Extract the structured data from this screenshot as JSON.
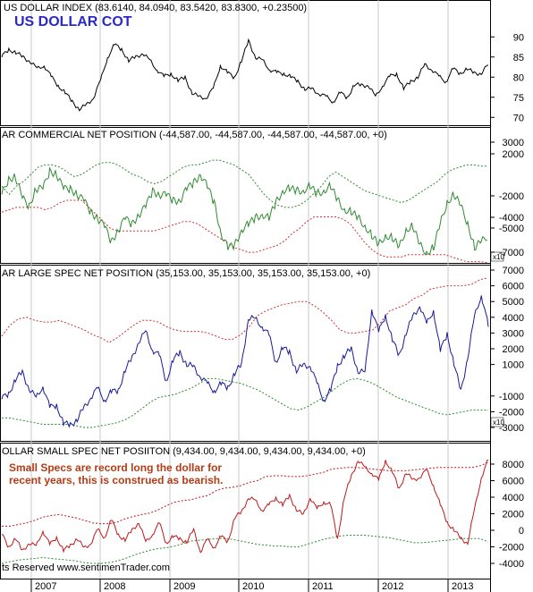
{
  "header": {
    "title_text": "US DOLLAR INDEX (83.6140, 84.0940, 83.5420, 83.8300, +0.23500)",
    "big_title": "US DOLLAR COT"
  },
  "annotation": {
    "line1": "Small Specs are record long the dollar for",
    "line2": "recent years, this is construed as bearish."
  },
  "footer": {
    "copyright": "ts Reserved  www.sentimenTrader.com"
  },
  "chart_data": [
    {
      "type": "line",
      "title": "US DOLLAR INDEX (83.6140, 84.0940, 83.5420, 83.8300, +0.23500)",
      "y_ticks": [
        90,
        85,
        80,
        75,
        70
      ],
      "ylim": [
        68.5,
        92.5
      ],
      "color": "#000000",
      "series": [
        {
          "values": [
            85,
            87,
            86,
            85,
            84,
            82,
            83,
            80,
            78,
            76,
            74,
            72,
            73,
            75,
            79,
            85,
            88,
            87,
            84,
            85,
            86,
            84,
            82,
            80,
            81,
            79,
            80,
            76,
            75,
            75,
            77,
            83,
            81,
            80,
            84,
            89,
            85,
            84,
            82,
            81,
            81,
            80,
            79,
            77,
            77,
            76,
            75,
            74,
            76,
            75,
            78,
            78,
            78,
            75,
            78,
            80,
            81,
            77,
            79,
            80,
            83,
            82,
            80,
            79,
            82,
            81,
            82,
            81,
            81,
            83
          ]
        }
      ],
      "bands": []
    },
    {
      "type": "line",
      "title": "AR COMMERCIAL NET POSITION (-44,587.00, -44,587.00, -44,587.00, -44,587.00, +0)",
      "y_ticks": [
        3000,
        2000,
        -2000,
        -4000,
        -5000,
        -7000
      ],
      "y_tick_labels": [
        "3000",
        "2000",
        "-2000",
        "-4000",
        "-5000",
        "-7000"
      ],
      "multiplier_label": "x10",
      "color": "#2f8a2f",
      "series": [
        {
          "values": [
            0.55,
            0.68,
            0.7,
            0.52,
            0.45,
            0.6,
            0.6,
            0.75,
            0.72,
            0.6,
            0.6,
            0.55,
            0.5,
            0.4,
            0.35,
            0.28,
            0.15,
            0.25,
            0.35,
            0.3,
            0.38,
            0.45,
            0.58,
            0.55,
            0.55,
            0.5,
            0.5,
            0.6,
            0.65,
            0.72,
            0.62,
            0.48,
            0.22,
            0.1,
            0.12,
            0.25,
            0.3,
            0.35,
            0.38,
            0.35,
            0.48,
            0.58,
            0.6,
            0.58,
            0.58,
            0.62,
            0.55,
            0.58,
            0.62,
            0.5,
            0.42,
            0.4,
            0.35,
            0.28,
            0.2,
            0.12,
            0.2,
            0.18,
            0.1,
            0.25,
            0.28,
            0.12,
            0.05,
            0.1,
            0.3,
            0.48,
            0.55,
            0.45,
            0.3,
            0.1,
            0.15,
            0.2
          ]
        }
      ],
      "bands": [
        {
          "values": [
            0.62,
            0.55,
            0.62,
            0.66,
            0.72,
            0.78,
            0.8,
            0.8,
            0.78,
            0.74,
            0.7,
            0.72,
            0.76,
            0.8,
            0.82,
            0.82,
            0.8,
            0.76,
            0.72,
            0.7,
            0.66,
            0.64,
            0.66,
            0.7,
            0.74,
            0.78,
            0.8,
            0.8,
            0.82,
            0.84,
            0.84,
            0.82,
            0.8,
            0.76,
            0.72,
            0.64,
            0.56,
            0.5,
            0.46,
            0.44,
            0.44,
            0.46,
            0.5,
            0.56,
            0.62,
            0.7,
            0.74,
            0.7,
            0.66,
            0.62,
            0.58,
            0.56,
            0.54,
            0.52,
            0.5,
            0.48,
            0.5,
            0.54,
            0.58,
            0.62,
            0.66,
            0.72,
            0.76,
            0.78,
            0.8,
            0.8,
            0.79,
            0.79
          ]
        },
        {
          "values": [
            0.4,
            0.42,
            0.44,
            0.44,
            0.44,
            0.44,
            0.42,
            0.44,
            0.48,
            0.5,
            0.5,
            0.5,
            0.44,
            0.38,
            0.32,
            0.26,
            0.24,
            0.24,
            0.24,
            0.24,
            0.24,
            0.24,
            0.26,
            0.28,
            0.3,
            0.32,
            0.32,
            0.3,
            0.26,
            0.22,
            0.18,
            0.14,
            0.1,
            0.08,
            0.06,
            0.06,
            0.08,
            0.1,
            0.12,
            0.16,
            0.22,
            0.26,
            0.32,
            0.36,
            0.36,
            0.36,
            0.36,
            0.34,
            0.3,
            0.22,
            0.14,
            0.08,
            0.04,
            0.02,
            0.02,
            0.02,
            0.04,
            0.04,
            0.04,
            0.04,
            0.04,
            0.04,
            0.02,
            0.0,
            -0.02,
            -0.02,
            -0.02,
            -0.03
          ]
        }
      ],
      "band_color": "#2f8a2f",
      "band2_color": "#d03030"
    },
    {
      "type": "line",
      "title": "AR LARGE SPEC NET POSITION (35,153.00, 35,153.00, 35,153.00, 35,153.00, +0)",
      "y_ticks": [
        7000,
        6000,
        5000,
        4000,
        3000,
        2000,
        1000,
        -1000,
        -2000,
        -3000
      ],
      "y_tick_labels": [
        "7000",
        "6000",
        "5000",
        "4000",
        "3000",
        "2000",
        "1000",
        "-1000",
        "-2000",
        "-3000"
      ],
      "multiplier_label": "x10",
      "color": "#1a1a9a",
      "series": [
        {
          "values": [
            -1200,
            -800,
            0,
            500,
            -500,
            -1200,
            -300,
            -1800,
            -1500,
            -2800,
            -2800,
            -2500,
            -1800,
            -1000,
            -600,
            -1200,
            -800,
            -600,
            600,
            1400,
            2500,
            3000,
            2000,
            1500,
            0,
            1200,
            1800,
            1000,
            800,
            300,
            -300,
            -600,
            -300,
            -400,
            400,
            1000,
            4000,
            3800,
            3500,
            2800,
            1200,
            2000,
            1800,
            600,
            900,
            1000,
            -300,
            -1200,
            -700,
            1000,
            1500,
            2000,
            600,
            400,
            4600,
            3000,
            4200,
            2500,
            1600,
            3000,
            4000,
            4800,
            3500,
            4500,
            1800,
            3000,
            1000,
            -700,
            1500,
            4000,
            5500,
            3400
          ]
        }
      ],
      "bands": [
        {
          "values": [
            2800,
            3500,
            3900,
            4000,
            3800,
            3700,
            3700,
            3800,
            3600,
            3400,
            3200,
            2900,
            2700,
            2400,
            2700,
            3100,
            3500,
            3800,
            3800,
            3700,
            3400,
            3200,
            3100,
            3100,
            3100,
            3000,
            2800,
            2600,
            2600,
            2900,
            3400,
            4100,
            4400,
            4600,
            4800,
            4900,
            5000,
            5000,
            4700,
            4300,
            3800,
            3200,
            3000,
            3000,
            3100,
            3200,
            3700,
            4400,
            4600,
            4800,
            5200,
            5400,
            5800,
            5900,
            6000,
            6000,
            6000,
            6100,
            6400,
            6500
          ]
        },
        {
          "values": [
            -2400,
            -2400,
            -2500,
            -2600,
            -2700,
            -2800,
            -2800,
            -2800,
            -2800,
            -2900,
            -3000,
            -3000,
            -2900,
            -2800,
            -2700,
            -2500,
            -2200,
            -1800,
            -1400,
            -1100,
            -1000,
            -900,
            -700,
            -500,
            -200,
            100,
            100,
            0,
            -100,
            -200,
            -400,
            -600,
            -900,
            -1200,
            -1500,
            -1800,
            -1900,
            -1700,
            -1400,
            -1100,
            -700,
            -300,
            0,
            100,
            0,
            -200,
            -500,
            -800,
            -1100,
            -1300,
            -1500,
            -1700,
            -1900,
            -2100,
            -2200,
            -2100,
            -2000,
            -1900,
            -1900,
            -1900
          ]
        }
      ],
      "band_color": "#d03030",
      "band2_color": "#2f8a2f"
    },
    {
      "type": "line",
      "title": "OLLAR SMALL SPEC NET POSIITON (9,434.00, 9,434.00, 9,434.00, 9,434.00, +0)",
      "y_ticks": [
        8000,
        6000,
        4000,
        2000,
        0,
        -2000,
        -4000
      ],
      "y_tick_labels": [
        "8000",
        "6000",
        "4000",
        "2000",
        "0",
        "-2000",
        "-4000"
      ],
      "color": "#c01818",
      "series": [
        {
          "values": [
            -500,
            -2000,
            -1000,
            -2500,
            -1500,
            -2000,
            0,
            -1800,
            -800,
            -2500,
            -1800,
            -1000,
            -2200,
            -1500,
            0,
            -800,
            1200,
            -500,
            -1200,
            0,
            1000,
            -1500,
            -400,
            800,
            -1500,
            -800,
            -1000,
            -1400,
            0,
            -2500,
            -1200,
            -2000,
            -800,
            -1300,
            1500,
            2200,
            4000,
            3500,
            2500,
            3000,
            4000,
            3000,
            4200,
            2500,
            1800,
            4000,
            2500,
            3500,
            3000,
            -1000,
            4000,
            6500,
            8500,
            7500,
            7000,
            6000,
            8500,
            7000,
            5000,
            7000,
            6000,
            6500,
            7200,
            5500,
            3000,
            1000,
            0,
            -1000,
            -1500,
            2500,
            6500,
            8500
          ]
        }
      ],
      "bands": [
        {
          "values": [
            500,
            500,
            700,
            900,
            1200,
            1600,
            1800,
            1900,
            1700,
            1500,
            1200,
            900,
            800,
            800,
            1000,
            1400,
            1700,
            1900,
            2100,
            2500,
            3000,
            3400,
            3600,
            3700,
            4000,
            4200,
            4800,
            5100,
            5200,
            5400,
            5800,
            6000,
            6500,
            6600,
            6600,
            6500,
            6500,
            6600,
            6800,
            7000,
            7400,
            7500,
            7600,
            7600,
            7500,
            7400,
            7300,
            7200,
            7200,
            7200,
            7300,
            7400,
            7500,
            7600,
            7600,
            7600,
            7600,
            7600,
            7800,
            8200
          ]
        },
        {
          "values": [
            -4000,
            -3800,
            -3600,
            -3500,
            -3400,
            -3300,
            -3400,
            -3500,
            -3600,
            -3700,
            -3900,
            -4000,
            -4000,
            -3900,
            -3700,
            -3400,
            -3000,
            -2700,
            -2400,
            -2200,
            -2100,
            -1900,
            -1600,
            -1300,
            -1200,
            -1100,
            -1000,
            -1000,
            -1100,
            -1300,
            -1500,
            -1700,
            -1800,
            -1900,
            -1900,
            -2000,
            -2000,
            -1700,
            -1400,
            -1100,
            -900,
            -700,
            -600,
            -600,
            -600,
            -700,
            -800,
            -900,
            -1100,
            -1300,
            -1500,
            -1500,
            -1400,
            -1300,
            -1200,
            -1100,
            -1000,
            -1000,
            -1000,
            -1400
          ]
        }
      ],
      "band_color": "#c01818",
      "band2_color": "#2f8a2f"
    }
  ],
  "x_axis": {
    "labels": [
      "2007",
      "2008",
      "2009",
      "2010",
      "2011",
      "2012",
      "2013"
    ]
  }
}
